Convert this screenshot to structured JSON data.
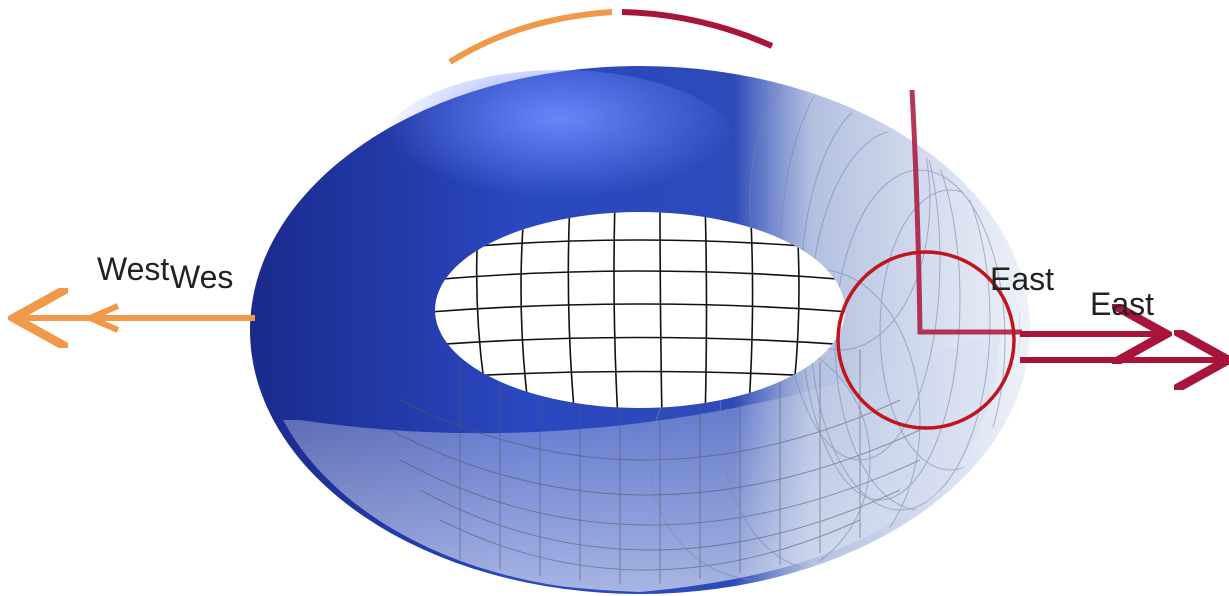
{
  "labels": [
    "West",
    "Wes",
    "East",
    "East"
  ]
}
